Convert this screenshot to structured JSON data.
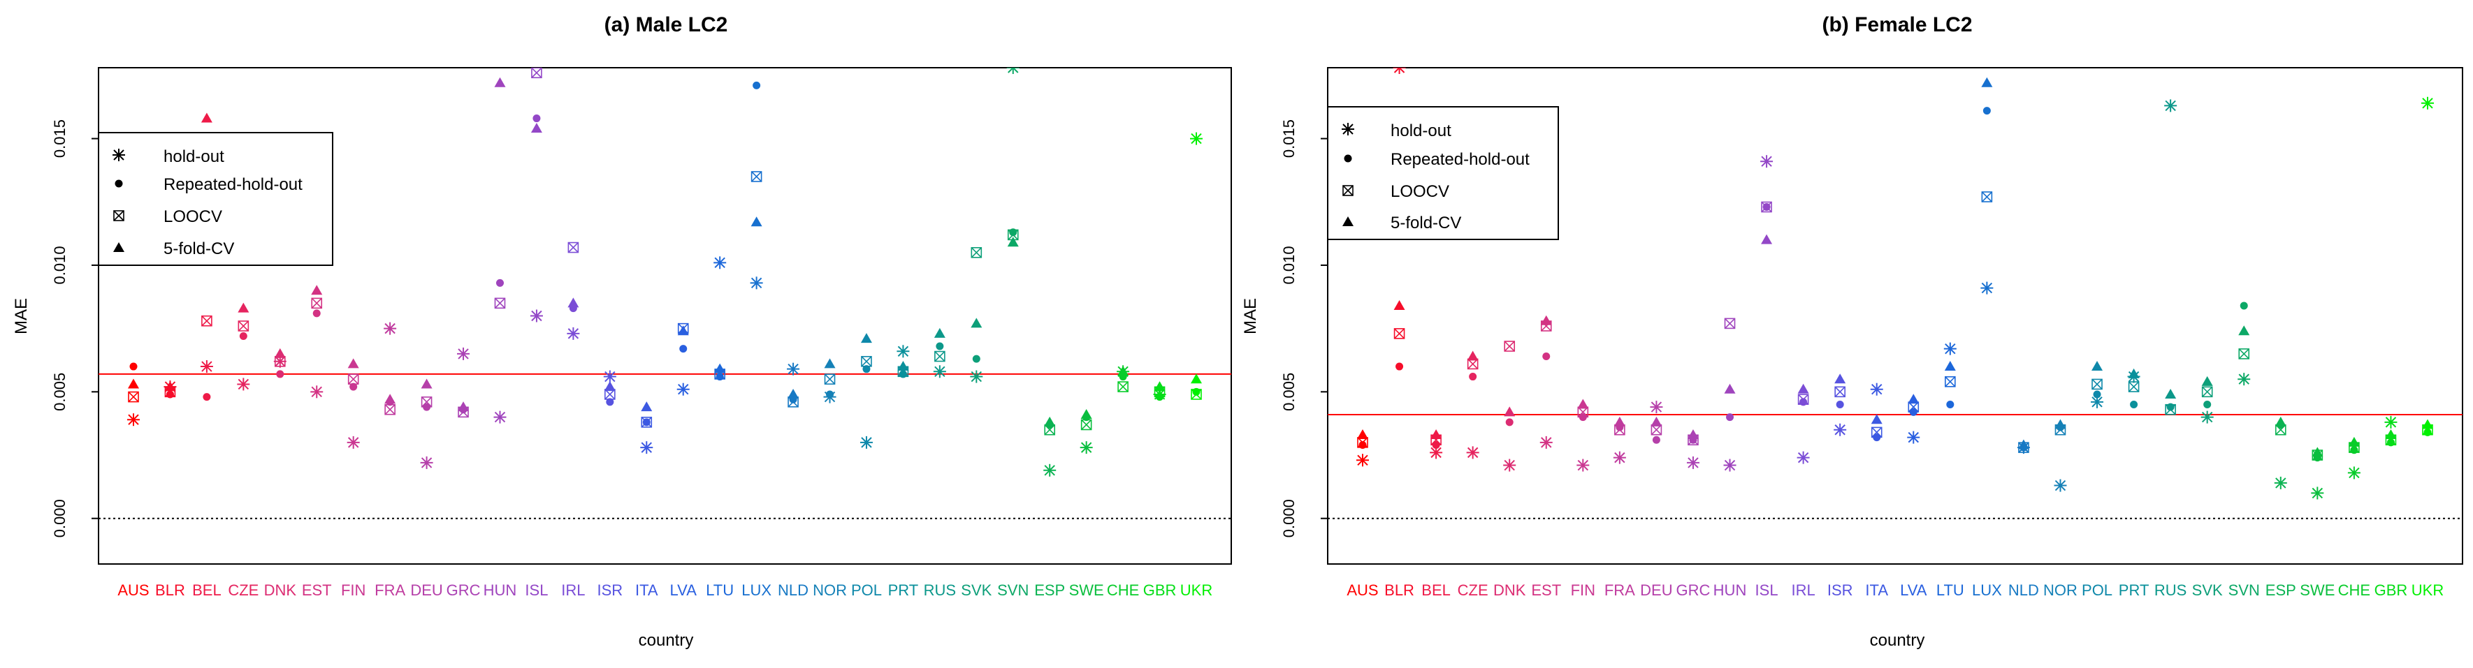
{
  "chart_data": [
    {
      "type": "scatter",
      "title": "(a) Male LC2",
      "xlabel": "country",
      "ylabel": "MAE",
      "ylim": [
        -0.0018,
        0.0178
      ],
      "yticks": [
        "0.000",
        "0.005",
        "0.010",
        "0.015"
      ],
      "reference_line": 0.0057,
      "zero_line": 0.0,
      "legend": {
        "position": "top-left",
        "entries": [
          "hold-out",
          "Repeated-hold-out",
          "LOOCV",
          "5-fold-CV"
        ],
        "symbols": [
          "*",
          "●",
          "⊠",
          "▲"
        ]
      },
      "categories": [
        "AUS",
        "BLR",
        "BEL",
        "CZE",
        "DNK",
        "EST",
        "FIN",
        "FRA",
        "DEU",
        "GRC",
        "HUN",
        "ISL",
        "IRL",
        "ISR",
        "ITA",
        "LVA",
        "LTU",
        "LUX",
        "NLD",
        "NOR",
        "POL",
        "PRT",
        "RUS",
        "SVK",
        "SVN",
        "ESP",
        "SWE",
        "CHE",
        "GBR",
        "UKR"
      ],
      "colors": [
        "#FF0000",
        "#F60D2A",
        "#EE1A48",
        "#E5245F",
        "#DC2C72",
        "#D33283",
        "#CA3791",
        "#C03B9E",
        "#B53FA9",
        "#AB42B4",
        "#9F44BD",
        "#9347C7",
        "#7B4DD6",
        "#5753E0",
        "#3C59E2",
        "#295FE0",
        "#1C67DA",
        "#1770CF",
        "#1779C4",
        "#1581B7",
        "#0E88AA",
        "#0A909B",
        "#0C988A",
        "#0D9F79",
        "#0CA866",
        "#0BB352",
        "#0ABE3E",
        "#08CC2A",
        "#05DD18",
        "#00F000"
      ],
      "series": [
        {
          "name": "hold-out",
          "values": [
            0.0039,
            0.0052,
            0.006,
            0.0053,
            0.0062,
            0.005,
            0.003,
            0.0075,
            0.0022,
            0.0065,
            0.004,
            0.008,
            0.0073,
            0.0056,
            0.0028,
            0.0051,
            0.0101,
            0.0093,
            0.0059,
            0.0048,
            0.003,
            0.0066,
            0.0058,
            0.0056,
            0.0178,
            0.0019,
            0.0028,
            0.0058,
            0.0049,
            0.015
          ]
        },
        {
          "name": "Repeated-hold-out",
          "values": [
            0.006,
            0.0049,
            0.0048,
            0.0072,
            0.0057,
            0.0081,
            0.0052,
            0.0046,
            0.0044,
            0.0043,
            0.0093,
            0.0158,
            0.0083,
            0.0046,
            0.0038,
            0.0067,
            0.0056,
            0.0171,
            0.0047,
            0.0049,
            0.0059,
            0.0057,
            0.0068,
            0.0063,
            0.0113,
            0.0037,
            0.004,
            0.0056,
            0.0048,
            0.005
          ]
        },
        {
          "name": "LOOCV",
          "values": [
            0.0048,
            0.005,
            0.0078,
            0.0076,
            0.0062,
            0.0085,
            0.0055,
            0.0043,
            0.0046,
            0.0042,
            0.0085,
            0.0176,
            0.0107,
            0.0049,
            0.0038,
            0.0075,
            0.0057,
            0.0135,
            0.0046,
            0.0055,
            0.0062,
            0.0058,
            0.0064,
            0.0105,
            0.0112,
            0.0035,
            0.0037,
            0.0052,
            0.005,
            0.0049
          ]
        },
        {
          "name": "5-fold-CV",
          "values": [
            0.0053,
            0.0052,
            0.0158,
            0.0083,
            0.0065,
            0.009,
            0.0061,
            0.0047,
            0.0053,
            0.0044,
            0.0172,
            0.0154,
            0.0085,
            0.0052,
            0.0044,
            0.0074,
            0.0059,
            0.0117,
            0.0049,
            0.0061,
            0.0071,
            0.006,
            0.0073,
            0.0077,
            0.0109,
            0.0038,
            0.0041,
            0.0058,
            0.0052,
            0.0055
          ]
        }
      ]
    },
    {
      "type": "scatter",
      "title": "(b) Female LC2",
      "xlabel": "country",
      "ylabel": "MAE",
      "ylim": [
        -0.0018,
        0.0178
      ],
      "yticks": [
        "0.000",
        "0.005",
        "0.010",
        "0.015"
      ],
      "reference_line": 0.0041,
      "zero_line": 0.0,
      "legend": {
        "position": "top-left",
        "entries": [
          "hold-out",
          "Repeated-hold-out",
          "LOOCV",
          "5-fold-CV"
        ],
        "symbols": [
          "*",
          "●",
          "⊠",
          "▲"
        ]
      },
      "categories": [
        "AUS",
        "BLR",
        "BEL",
        "CZE",
        "DNK",
        "EST",
        "FIN",
        "FRA",
        "DEU",
        "GRC",
        "HUN",
        "ISL",
        "IRL",
        "ISR",
        "ITA",
        "LVA",
        "LTU",
        "LUX",
        "NLD",
        "NOR",
        "POL",
        "PRT",
        "RUS",
        "SVK",
        "SVN",
        "ESP",
        "SWE",
        "CHE",
        "GBR",
        "UKR"
      ],
      "colors": [
        "#FF0000",
        "#F60D2A",
        "#EE1A48",
        "#E5245F",
        "#DC2C72",
        "#D33283",
        "#CA3791",
        "#C03B9E",
        "#B53FA9",
        "#AB42B4",
        "#9F44BD",
        "#9347C7",
        "#7B4DD6",
        "#5753E0",
        "#3C59E2",
        "#295FE0",
        "#1C67DA",
        "#1770CF",
        "#1779C4",
        "#1581B7",
        "#0E88AA",
        "#0A909B",
        "#0C988A",
        "#0D9F79",
        "#0CA866",
        "#0BB352",
        "#0ABE3E",
        "#08CC2A",
        "#05DD18",
        "#00F000"
      ],
      "series": [
        {
          "name": "hold-out",
          "values": [
            0.0023,
            0.0178,
            0.0026,
            0.0026,
            0.0021,
            0.003,
            0.0021,
            0.0024,
            0.0044,
            0.0022,
            0.0021,
            0.0141,
            0.0024,
            0.0035,
            0.0051,
            0.0032,
            0.0067,
            0.0091,
            0.0028,
            0.0013,
            0.0046,
            0.0056,
            0.0163,
            0.004,
            0.0055,
            0.0014,
            0.001,
            0.0018,
            0.0038,
            0.0164
          ]
        },
        {
          "name": "Repeated-hold-out",
          "values": [
            0.0029,
            0.006,
            0.0029,
            0.0056,
            0.0038,
            0.0064,
            0.004,
            0.0036,
            0.0031,
            0.0031,
            0.004,
            0.0123,
            0.0046,
            0.0045,
            0.0032,
            0.0042,
            0.0045,
            0.0161,
            0.0028,
            0.0036,
            0.0049,
            0.0045,
            0.0044,
            0.0045,
            0.0084,
            0.0037,
            0.0024,
            0.0027,
            0.003,
            0.0034
          ]
        },
        {
          "name": "LOOCV",
          "values": [
            0.003,
            0.0073,
            0.0031,
            0.0061,
            0.0068,
            0.0076,
            0.0042,
            0.0035,
            0.0035,
            0.0031,
            0.0077,
            0.0123,
            0.0047,
            0.005,
            0.0034,
            0.0044,
            0.0054,
            0.0127,
            0.0028,
            0.0035,
            0.0053,
            0.0052,
            0.0043,
            0.005,
            0.0065,
            0.0035,
            0.0025,
            0.0028,
            0.0031,
            0.0035
          ]
        },
        {
          "name": "5-fold-CV",
          "values": [
            0.0033,
            0.0084,
            0.0033,
            0.0064,
            0.0042,
            0.0078,
            0.0045,
            0.0038,
            0.0038,
            0.0033,
            0.0051,
            0.011,
            0.0051,
            0.0055,
            0.0039,
            0.0047,
            0.006,
            0.0172,
            0.0029,
            0.0037,
            0.006,
            0.0057,
            0.0049,
            0.0054,
            0.0074,
            0.0038,
            0.0026,
            0.003,
            0.0033,
            0.0037
          ]
        }
      ]
    }
  ]
}
